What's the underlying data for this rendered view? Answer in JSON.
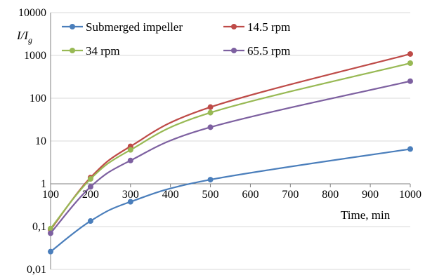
{
  "chart_data": {
    "type": "line",
    "title": "",
    "xlabel": "Time, min",
    "ylabel": "I/Ig",
    "ylabel_main": "I/I",
    "ylabel_sub": "g",
    "xlim": [
      100,
      1000
    ],
    "ylim": [
      0.01,
      10000
    ],
    "yscale": "log",
    "grid": "horizontal",
    "legend_position": "top",
    "x_ticks": [
      "100",
      "200",
      "300",
      "400",
      "500",
      "600",
      "700",
      "800",
      "900",
      "1000"
    ],
    "y_ticks": [
      "0,01",
      "0,1",
      "1",
      "10",
      "100",
      "1000",
      "10000"
    ],
    "series": [
      {
        "name": "Submerged impeller",
        "color": "#4a7ebb",
        "x": [
          100,
          200,
          300,
          500,
          1000
        ],
        "y": [
          0.026,
          0.135,
          0.38,
          1.25,
          6.5
        ]
      },
      {
        "name": "14.5 rpm",
        "color": "#be4b48",
        "x": [
          100,
          200,
          300,
          500,
          1000
        ],
        "y": [
          0.085,
          1.4,
          7.5,
          62,
          1080
        ]
      },
      {
        "name": "34 rpm",
        "color": "#98b954",
        "x": [
          100,
          200,
          300,
          500,
          1000
        ],
        "y": [
          0.09,
          1.3,
          6.2,
          46,
          660
        ]
      },
      {
        "name": "65.5 rpm",
        "color": "#7d60a0",
        "x": [
          100,
          200,
          300,
          500,
          1000
        ],
        "y": [
          0.07,
          0.85,
          3.5,
          21,
          250
        ]
      }
    ]
  }
}
